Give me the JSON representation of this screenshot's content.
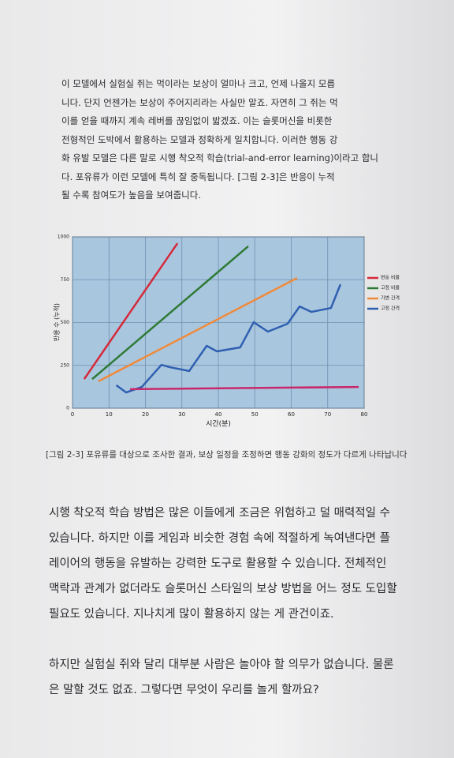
{
  "paragraphs": [
    {
      "lines": [
        "이 모델에서 실험실 쥐는 먹이라는 보상이 얼마나 크고, 언제 나올지 모릅",
        "니다. 단지 언젠가는 보상이 주어지리라는 사실만 알죠. 자연히 그 쥐는 먹",
        "이를 얻을 때까지 계속 레버를 끊임없이 밟겠죠. 이는 슬롯머신을 비롯한",
        "전형적인 도박에서 활용하는 모델과 정확하게 일치합니다. 이러한 행동 강",
        "화 유발 모델은 다른 말로 시행 착오적 학습(trial-and-error learning)이라고 합니",
        "다. 포유류가 이런 모델에 특히 잘 중독됩니다. [그림 2-3]은 반응이 누적",
        "될 수록 참여도가 높음을 보여줍니다."
      ]
    },
    {
      "lines": [
        "시행 착오적 학습 방법은 많은 이들에게 조금은 위험하고 덜 매력적일 수",
        "있습니다. 하지만 이를 게임과 비슷한 경험 속에 적절하게 녹여낸다면 플",
        "레이어의 행동을 유발하는 강력한 도구로 활용할 수 있습니다. 전체적인",
        "맥락과 관계가 없더라도 슬롯머신 스타일의 보상 방법을 어느 정도 도입할",
        "필요도 있습니다. 지나치게 많이 활용하지 않는 게 관건이죠."
      ]
    },
    {
      "lines": [
        "하지만 실험실 쥐와 달리 대부분 사람은 놀아야 할 의무가 없습니다. 물론",
        "은 말할 것도 없죠. 그렇다면 무엇이 우리를 놀게 할까요?"
      ]
    }
  ],
  "caption": "[그림 2-3] 포유류를 대상으로 조사한 결과, 보상 일정을 조정하면 행동 강화의 정도가 다르게 나타납니다",
  "chart_data": {
    "type": "line",
    "x_label": "시간(분)",
    "y_label": "반응 수 (누적)",
    "xlim": [
      0,
      80
    ],
    "xticks": [
      0,
      10,
      20,
      30,
      40,
      50,
      60,
      70,
      80
    ],
    "ylim": [
      0,
      1000
    ],
    "yticks": [
      0,
      250,
      500,
      750,
      1000
    ],
    "grid": true,
    "legend": "right",
    "series": [
      {
        "name": "변동 비율",
        "color": "#d42a3a",
        "x": [
          3.2,
          28.8
        ],
        "values": [
          170,
          963
        ]
      },
      {
        "name": "고정 비율",
        "color": "#2f7a35",
        "x": [
          5.4,
          48.2
        ],
        "values": [
          170,
          945
        ]
      },
      {
        "name": "가변 간격",
        "color": "#f08a3a",
        "x": [
          7.1,
          61.6
        ],
        "values": [
          157,
          760
        ]
      },
      {
        "name": "고정 간격",
        "color": "#2f5fb0",
        "x": [
          12,
          14.7,
          19,
          24.4,
          26.6,
          32,
          36.8,
          39.6,
          46,
          49.7,
          53.6,
          59,
          62.3,
          65.5,
          70.9,
          73.5
        ],
        "values": [
          134,
          92,
          124,
          253,
          240,
          217,
          364,
          332,
          355,
          502,
          447,
          493,
          594,
          562,
          585,
          723
        ]
      },
      {
        "name": null,
        "color": "#c8286a",
        "x": [
          15.8,
          78.5
        ],
        "values": [
          111,
          124
        ]
      }
    ]
  }
}
